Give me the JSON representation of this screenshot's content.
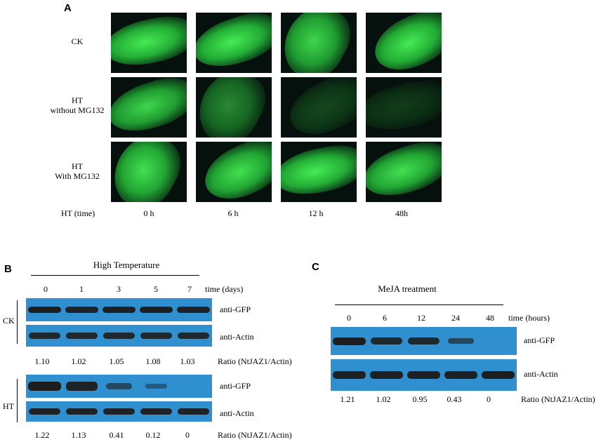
{
  "panelA": {
    "letter": "A",
    "rows": [
      {
        "line1": "CK",
        "line2": ""
      },
      {
        "line1": "HT",
        "line2": "without MG132"
      },
      {
        "line1": "HT",
        "line2": "With MG132"
      }
    ],
    "time_label": "HT (time)",
    "times": [
      "0 h",
      "6 h",
      "12 h",
      "48h"
    ],
    "image_grid": [
      [
        1.0,
        1.0,
        0.9,
        1.0
      ],
      [
        0.9,
        0.55,
        0.25,
        0.2
      ],
      [
        0.95,
        0.95,
        1.0,
        0.95
      ]
    ]
  },
  "panelB": {
    "letter": "B",
    "header": "High Temperature",
    "lanes": [
      "0",
      "1",
      "3",
      "5",
      "7"
    ],
    "lane_unit": "time (days)",
    "ck_label": "CK",
    "ht_label": "HT",
    "ck_gfp_label": "anti-GFP",
    "ck_actin_label": "anti-Actin",
    "ht_gfp_label": "anti-GFP",
    "ht_actin_label": "anti-Actin",
    "ck_ratios": [
      "1.10",
      "1.02",
      "1.05",
      "1.08",
      "1.03"
    ],
    "ht_ratios": [
      "1.22",
      "1.13",
      "0.41",
      "0.12",
      "0"
    ],
    "ratio_label": "Ratio (NtJAZ1/Actin)",
    "ck_gfp_intensity": [
      1.0,
      0.92,
      0.95,
      0.97,
      0.93
    ],
    "ht_gfp_intensity": [
      1.0,
      0.9,
      0.4,
      0.15,
      0.0
    ]
  },
  "panelC": {
    "letter": "C",
    "header": "MeJA treatment",
    "lanes": [
      "0",
      "6",
      "12",
      "24",
      "48"
    ],
    "lane_unit": "time (hours)",
    "gfp_label": "anti-GFP",
    "actin_label": "anti-Actin",
    "ratios": [
      "1.21",
      "1.02",
      "0.95",
      "0.43",
      "0"
    ],
    "ratio_label": "Ratio (NtJAZ1/Actin)",
    "gfp_intensity": [
      1.0,
      0.85,
      0.85,
      0.45,
      0.0
    ]
  },
  "colors": {
    "fluorescence": "#33e04a",
    "blot_background": "#2f8fcf",
    "band": "#1d1d1d"
  }
}
